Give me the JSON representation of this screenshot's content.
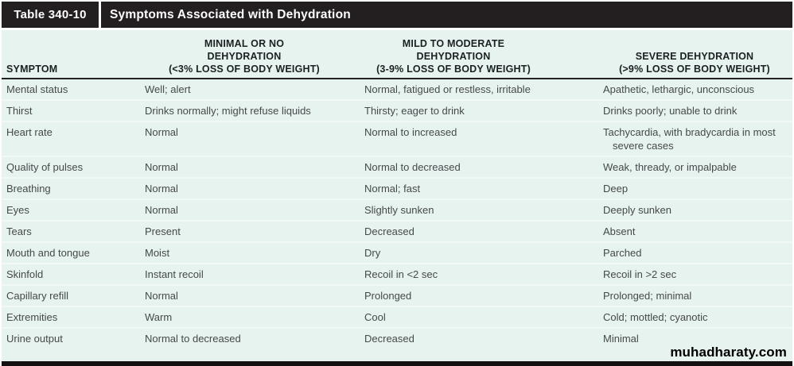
{
  "title_bar": {
    "label": "Table 340-10",
    "title": "Symptoms Associated with Dehydration"
  },
  "table": {
    "columns": [
      {
        "lines": [
          "SYMPTOM"
        ]
      },
      {
        "lines": [
          "MINIMAL OR NO",
          "DEHYDRATION",
          "(<3% LOSS OF BODY WEIGHT)"
        ]
      },
      {
        "lines": [
          "MILD TO MODERATE",
          "DEHYDRATION",
          "(3-9% LOSS OF BODY WEIGHT)"
        ]
      },
      {
        "lines": [
          "SEVERE DEHYDRATION",
          "(>9% LOSS OF BODY WEIGHT)"
        ]
      }
    ],
    "rows": [
      {
        "symptom": "Mental status",
        "minimal": "Well; alert",
        "mild": "Normal, fatigued or restless, irritable",
        "severe": "Apathetic, lethargic, unconscious"
      },
      {
        "symptom": "Thirst",
        "minimal": "Drinks normally; might refuse liquids",
        "mild": "Thirsty; eager to drink",
        "severe": "Drinks poorly; unable to drink"
      },
      {
        "symptom": "Heart rate",
        "minimal": "Normal",
        "mild": "Normal to increased",
        "severe": "Tachycardia, with bradycardia in most severe cases"
      },
      {
        "symptom": "Quality of pulses",
        "minimal": "Normal",
        "mild": "Normal to decreased",
        "severe": "Weak, thready, or impalpable"
      },
      {
        "symptom": "Breathing",
        "minimal": "Normal",
        "mild": "Normal; fast",
        "severe": "Deep"
      },
      {
        "symptom": "Eyes",
        "minimal": "Normal",
        "mild": "Slightly sunken",
        "severe": "Deeply sunken"
      },
      {
        "symptom": "Tears",
        "minimal": "Present",
        "mild": "Decreased",
        "severe": "Absent"
      },
      {
        "symptom": "Mouth and tongue",
        "minimal": "Moist",
        "mild": "Dry",
        "severe": "Parched"
      },
      {
        "symptom": "Skinfold",
        "minimal": "Instant recoil",
        "mild": "Recoil in <2 sec",
        "severe": "Recoil in >2 sec"
      },
      {
        "symptom": "Capillary refill",
        "minimal": "Normal",
        "mild": "Prolonged",
        "severe": "Prolonged; minimal"
      },
      {
        "symptom": "Extremities",
        "minimal": "Warm",
        "mild": "Cool",
        "severe": "Cold; mottled; cyanotic"
      },
      {
        "symptom": "Urine output",
        "minimal": "Normal to decreased",
        "mild": "Decreased",
        "severe": "Minimal"
      }
    ]
  },
  "watermark": "muhadharaty.com",
  "colors": {
    "title_bar_bg": "#231f20",
    "table_bg": "#e7f3ee",
    "row_separator": "#f2f9f5",
    "header_rule": "#212121",
    "header_text": "#1b2023",
    "body_text": "#45494b"
  }
}
